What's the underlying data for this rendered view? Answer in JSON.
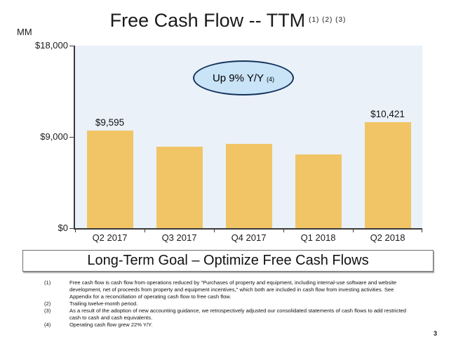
{
  "slide": {
    "title": "Free Cash Flow -- TTM",
    "title_footnote_refs": "(1) (2) (3)",
    "units_label": "MM",
    "callout": {
      "text": "Up 9% Y/Y",
      "footnote_ref": "(4)"
    },
    "banner": "Long-Term Goal – Optimize Free Cash Flows",
    "footnotes": [
      {
        "num": "(1)",
        "text": "Free cash flow is cash flow from operations reduced by \"Purchases of property and equipment, including internal-use software and website development, net of proceeds from property and equipment incentives,\" which both are included in cash flow from investing activities. See Appendix for a reconciliation of operating cash flow to free cash flow."
      },
      {
        "num": "(2)",
        "text": "Trailing twelve-month period."
      },
      {
        "num": "(3)",
        "text": "As a result of the adoption of new accounting guidance, we retrospectively adjusted our consolidated statements of cash flows to add restricted cash to cash and cash equivalents."
      },
      {
        "num": "(4)",
        "text": "Operating cash flow grew 22% Y/Y."
      }
    ],
    "page_number": "3"
  },
  "chart_data": {
    "type": "bar",
    "title": "Free Cash Flow -- TTM",
    "ylabel": "MM",
    "categories": [
      "Q2 2017",
      "Q3 2017",
      "Q4 2017",
      "Q1 2018",
      "Q2 2018"
    ],
    "values": [
      9595,
      8050,
      8307,
      7301,
      10421
    ],
    "bar_labels": [
      "$9,595",
      "",
      "",
      "",
      "$10,421"
    ],
    "ylim": [
      0,
      18000
    ],
    "yticks": [
      {
        "value": 0,
        "label": "$0"
      },
      {
        "value": 9000,
        "label": "$9,000"
      },
      {
        "value": 18000,
        "label": "$18,000"
      }
    ],
    "grid": false,
    "legend": null,
    "annotation": "Up 9% Y/Y (4)",
    "colors": {
      "bar": "#F1C566",
      "plot_bg": "#EAF1F9",
      "callout_fill": "#C9E3F7",
      "callout_border": "#14335B",
      "axis": "#3a3a3a"
    }
  }
}
